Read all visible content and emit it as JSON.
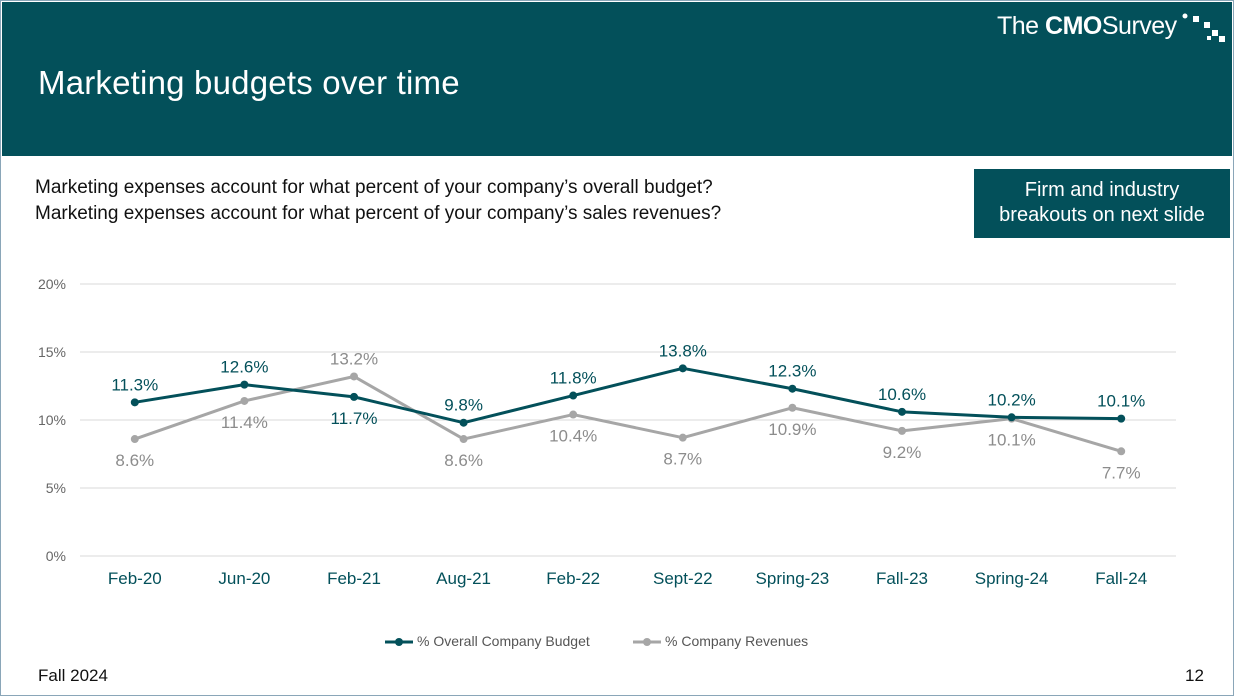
{
  "header": {
    "title": "Marketing budgets over time",
    "logo": {
      "the": "The",
      "brand": "CMO",
      "survey": "Survey"
    }
  },
  "questions": [
    "Marketing expenses account for what percent of your company’s overall budget?",
    "Marketing expenses account for what percent of your company’s sales revenues?"
  ],
  "callout": {
    "line1": "Firm and industry",
    "line2": "breakouts on next slide"
  },
  "footer": {
    "left": "Fall 2024",
    "page": "12"
  },
  "colors": {
    "brand": "#03505a",
    "series1": "#03505a",
    "series2": "#a6a6a6",
    "grid": "#d9d9d9"
  },
  "chart_data": {
    "type": "line",
    "categories": [
      "Feb-20",
      "Jun-20",
      "Feb-21",
      "Aug-21",
      "Feb-22",
      "Sept-22",
      "Spring-23",
      "Fall-23",
      "Spring-24",
      "Fall-24"
    ],
    "ylim": [
      0,
      20
    ],
    "yticks": [
      "0%",
      "5%",
      "10%",
      "15%",
      "20%"
    ],
    "grid": true,
    "legend_position": "bottom",
    "series": [
      {
        "name": "% Overall Company Budget",
        "values": [
          11.3,
          12.6,
          11.7,
          9.8,
          11.8,
          13.8,
          12.3,
          10.6,
          10.2,
          10.1
        ],
        "labels": [
          "11.3%",
          "12.6%",
          "11.7%",
          "9.8%",
          "11.8%",
          "13.8%",
          "12.3%",
          "10.6%",
          "10.2%",
          "10.1%"
        ]
      },
      {
        "name": "% Company Revenues",
        "values": [
          8.6,
          11.4,
          13.2,
          8.6,
          10.4,
          8.7,
          10.9,
          9.2,
          10.1,
          7.7
        ],
        "labels": [
          "8.6%",
          "11.4%",
          "13.2%",
          "8.6%",
          "10.4%",
          "8.7%",
          "10.9%",
          "9.2%",
          "10.1%",
          "7.7%"
        ]
      }
    ]
  }
}
